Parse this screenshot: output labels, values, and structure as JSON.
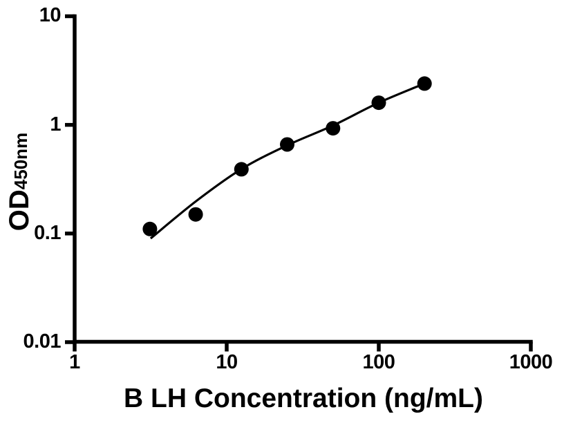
{
  "chart_data": {
    "type": "scatter",
    "title": "",
    "xlabel": "B LH Concentration (ng/mL)",
    "ylabel": "OD",
    "ylabel_subscript": "450nm",
    "x_scale": "log",
    "y_scale": "log",
    "xlim": [
      1,
      1000
    ],
    "ylim": [
      0.01,
      10
    ],
    "x_ticks": [
      1,
      10,
      100,
      1000
    ],
    "x_tick_labels": [
      "1",
      "10",
      "100",
      "1000"
    ],
    "y_ticks": [
      0.01,
      0.1,
      1,
      10
    ],
    "y_tick_labels": [
      "0.01",
      "0.1",
      "1",
      "10"
    ],
    "grid": false,
    "legend": "none",
    "series": [
      {
        "name": "standard-curve-points",
        "x": [
          3.125,
          6.25,
          12.5,
          25,
          50,
          100,
          200
        ],
        "y": [
          0.11,
          0.15,
          0.39,
          0.66,
          0.93,
          1.6,
          2.4
        ]
      }
    ],
    "fit_curve": {
      "name": "four-parameter-fit",
      "x": [
        3.16,
        6.25,
        12.5,
        25,
        50,
        100,
        200
      ],
      "y": [
        0.09,
        0.197,
        0.392,
        0.648,
        0.986,
        1.6,
        2.4
      ]
    },
    "colors": {
      "points": "#000000",
      "curve": "#000000",
      "axis": "#000000",
      "text": "#000000",
      "background": "#ffffff"
    },
    "marker": {
      "shape": "circle",
      "radius_px": 10.5
    }
  }
}
